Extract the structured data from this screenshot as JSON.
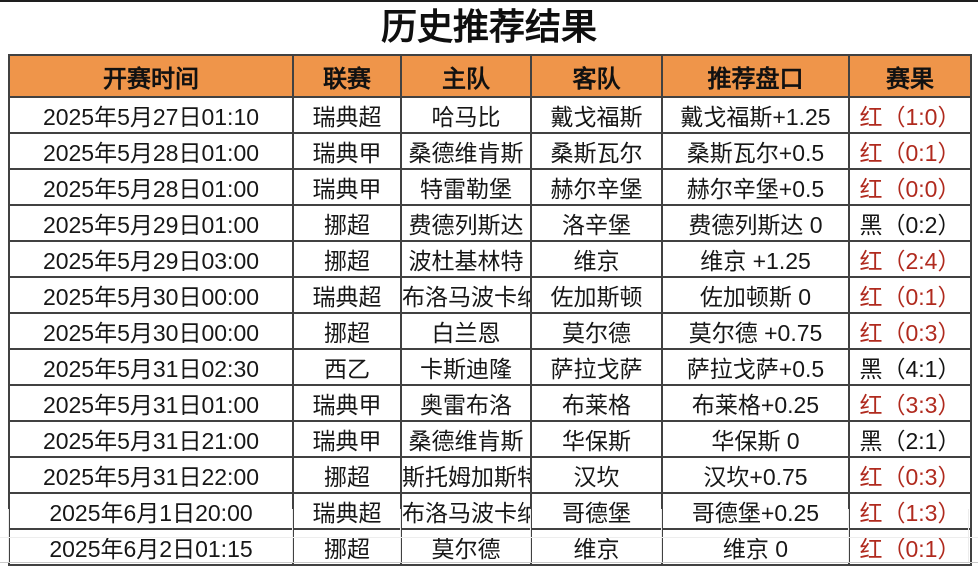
{
  "title": "历史推荐结果",
  "colors": {
    "header_bg": "#ef954a",
    "result_red": "#b02a1e",
    "result_black": "#141414"
  },
  "table": {
    "headers": [
      "开赛时间",
      "联赛",
      "主队",
      "客队",
      "推荐盘口",
      "赛果"
    ],
    "rows": [
      {
        "time": "2025年5月27日01:10",
        "league": "瑞典超",
        "home": "哈马比",
        "away": "戴戈福斯",
        "handicap": "戴戈福斯+1.25",
        "result": "红（1:0）",
        "result_color": "red"
      },
      {
        "time": "2025年5月28日01:00",
        "league": "瑞典甲",
        "home": "桑德维肯斯",
        "away": "桑斯瓦尔",
        "handicap": "桑斯瓦尔+0.5",
        "result": "红（0:1）",
        "result_color": "red"
      },
      {
        "time": "2025年5月28日01:00",
        "league": "瑞典甲",
        "home": "特雷勒堡",
        "away": "赫尔辛堡",
        "handicap": "赫尔辛堡+0.5",
        "result": "红（0:0）",
        "result_color": "red"
      },
      {
        "time": "2025年5月29日01:00",
        "league": "挪超",
        "home": "费德列斯达",
        "away": "洛辛堡",
        "handicap": "费德列斯达 0",
        "result": "黑（0:2）",
        "result_color": "black"
      },
      {
        "time": "2025年5月29日03:00",
        "league": "挪超",
        "home": "波杜基林特",
        "away": "维京",
        "handicap": "维京 +1.25",
        "result": "红（2:4）",
        "result_color": "red"
      },
      {
        "time": "2025年5月30日00:00",
        "league": "瑞典超",
        "home": "布洛马波卡纳",
        "away": "佐加斯顿",
        "handicap": "佐加顿斯 0",
        "result": "红（0:1）",
        "result_color": "red"
      },
      {
        "time": "2025年5月30日00:00",
        "league": "挪超",
        "home": "白兰恩",
        "away": "莫尔德",
        "handicap": "莫尔德 +0.75",
        "result": "红（0:3）",
        "result_color": "red"
      },
      {
        "time": "2025年5月31日02:30",
        "league": "西乙",
        "home": "卡斯迪隆",
        "away": "萨拉戈萨",
        "handicap": "萨拉戈萨+0.5",
        "result": "黑（4:1）",
        "result_color": "black"
      },
      {
        "time": "2025年5月31日01:00",
        "league": "瑞典甲",
        "home": "奥雷布洛",
        "away": "布莱格",
        "handicap": "布莱格+0.25",
        "result": "红（3:3）",
        "result_color": "red"
      },
      {
        "time": "2025年5月31日21:00",
        "league": "瑞典甲",
        "home": "桑德维肯斯",
        "away": "华保斯",
        "handicap": "华保斯 0",
        "result": "黑（2:1）",
        "result_color": "black"
      },
      {
        "time": "2025年5月31日22:00",
        "league": "挪超",
        "home": "斯托姆加斯特",
        "away": "汉坎",
        "handicap": "汉坎+0.75",
        "result": "红（0:3）",
        "result_color": "red"
      },
      {
        "time": "2025年6月1日20:00",
        "league": "瑞典超",
        "home": "布洛马波卡纳",
        "away": "哥德堡",
        "handicap": "哥德堡+0.25",
        "result": "红（1:3）",
        "result_color": "red"
      },
      {
        "time": "2025年6月2日01:15",
        "league": "挪超",
        "home": "莫尔德",
        "away": "维京",
        "handicap": "维京 0",
        "result": "红（0:1）",
        "result_color": "red"
      }
    ]
  }
}
